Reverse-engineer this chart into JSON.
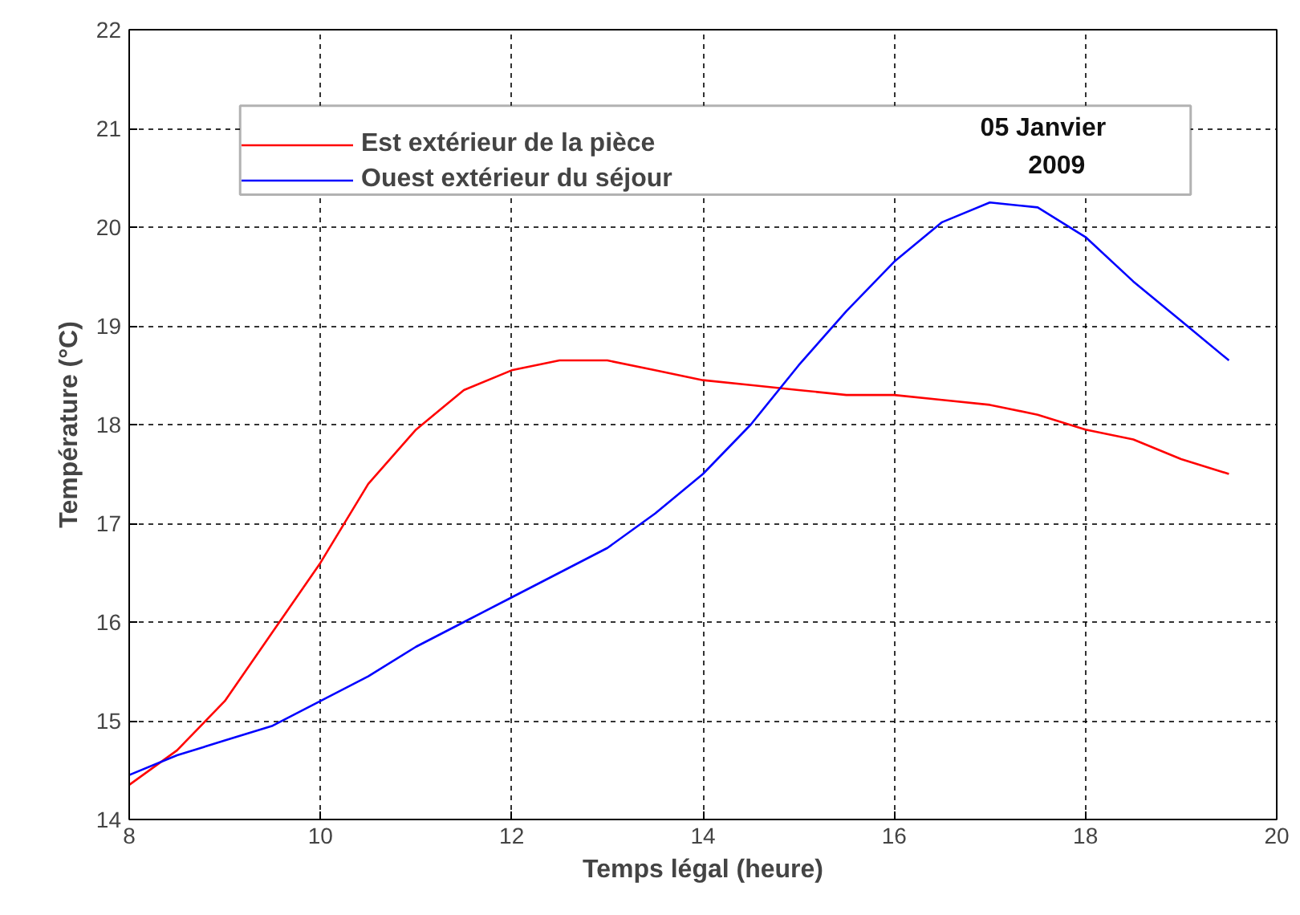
{
  "chart_data": {
    "type": "line",
    "xlabel": "Temps légal (heure)",
    "ylabel": "Température (°C)",
    "x": [
      8,
      8.5,
      9,
      9.5,
      10,
      10.5,
      11,
      11.5,
      12,
      12.5,
      13,
      13.5,
      14,
      14.5,
      15,
      15.5,
      16,
      16.5,
      17,
      17.5,
      18,
      18.5,
      19,
      19.5
    ],
    "series": [
      {
        "name": "Est extérieur de la pièce",
        "color": "#ff0000",
        "values": [
          14.35,
          14.7,
          15.2,
          15.9,
          16.6,
          17.4,
          17.95,
          18.35,
          18.55,
          18.65,
          18.65,
          18.55,
          18.45,
          18.4,
          18.35,
          18.3,
          18.3,
          18.25,
          18.2,
          18.1,
          17.95,
          17.85,
          17.65,
          17.5
        ]
      },
      {
        "name": "Ouest extérieur du séjour",
        "color": "#0000ff",
        "values": [
          14.45,
          14.65,
          14.8,
          14.95,
          15.2,
          15.45,
          15.75,
          16.0,
          16.25,
          16.5,
          16.75,
          17.1,
          17.5,
          18.0,
          18.6,
          19.15,
          19.65,
          20.05,
          20.25,
          20.2,
          19.9,
          19.45,
          19.05,
          18.65
        ]
      }
    ],
    "annotations": [
      "05 Janvier",
      "2009"
    ],
    "xlim": [
      8,
      20
    ],
    "ylim": [
      14,
      22
    ],
    "xticks": [
      8,
      10,
      12,
      14,
      16,
      18,
      20
    ],
    "yticks": [
      14,
      15,
      16,
      17,
      18,
      19,
      20,
      21,
      22
    ],
    "grid": true,
    "legend": "top",
    "marker": "none",
    "line_style": "solid"
  }
}
